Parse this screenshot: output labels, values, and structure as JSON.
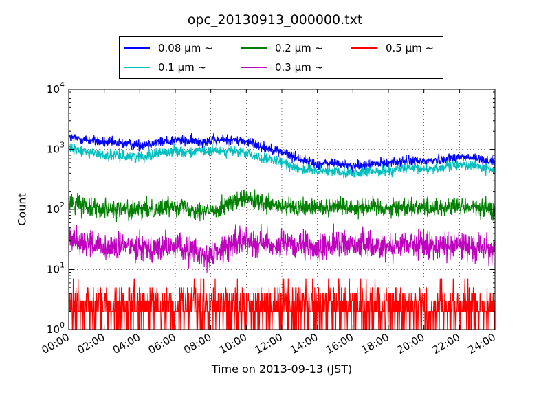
{
  "chart_data": {
    "type": "line",
    "title": "opc_20130913_000000.txt",
    "xlabel": "Time on 2013-09-13 (JST)",
    "ylabel": "Count",
    "yscale": "log",
    "ylim": [
      1,
      10000
    ],
    "xlim": [
      "00:00",
      "24:00"
    ],
    "x_ticks": [
      "00:00",
      "02:00",
      "04:00",
      "06:00",
      "08:00",
      "10:00",
      "12:00",
      "14:00",
      "16:00",
      "18:00",
      "20:00",
      "22:00",
      "24:00"
    ],
    "y_ticks": [
      {
        "value": 1,
        "base": "10",
        "exp": "0"
      },
      {
        "value": 10,
        "base": "10",
        "exp": "1"
      },
      {
        "value": 100,
        "base": "10",
        "exp": "2"
      },
      {
        "value": 1000,
        "base": "10",
        "exp": "3"
      },
      {
        "value": 10000,
        "base": "10",
        "exp": "4"
      }
    ],
    "grid": true,
    "legend_position": "top",
    "x_hours": [
      0,
      1,
      2,
      3,
      4,
      5,
      6,
      7,
      8,
      9,
      10,
      11,
      12,
      13,
      14,
      15,
      16,
      17,
      18,
      19,
      20,
      21,
      22,
      23,
      24
    ],
    "series": [
      {
        "name": "0.08 μm ~",
        "color": "#0000ff",
        "values": [
          1550,
          1450,
          1300,
          1250,
          1200,
          1300,
          1450,
          1350,
          1400,
          1450,
          1350,
          1100,
          900,
          700,
          550,
          600,
          520,
          560,
          600,
          640,
          630,
          680,
          750,
          700,
          620
        ]
      },
      {
        "name": "0.1 μm ~",
        "color": "#00bfbf",
        "values": [
          1000,
          920,
          800,
          780,
          750,
          850,
          950,
          900,
          920,
          950,
          850,
          700,
          600,
          480,
          420,
          440,
          400,
          420,
          450,
          480,
          470,
          500,
          560,
          520,
          450
        ]
      },
      {
        "name": "0.2 μm ~",
        "color": "#008000",
        "values": [
          130,
          115,
          105,
          100,
          95,
          105,
          120,
          100,
          90,
          130,
          150,
          120,
          110,
          105,
          108,
          115,
          110,
          112,
          105,
          110,
          110,
          108,
          112,
          105,
          95
        ]
      },
      {
        "name": "0.3 μm ~",
        "color": "#bf00bf",
        "values": [
          35,
          28,
          22,
          24,
          26,
          22,
          25,
          20,
          17,
          25,
          32,
          28,
          25,
          24,
          22,
          28,
          27,
          25,
          24,
          28,
          25,
          24,
          26,
          23,
          22
        ]
      },
      {
        "name": "0.5 μm ~",
        "color": "#ff0000",
        "values": [
          2,
          2,
          2,
          2,
          2,
          2,
          2,
          2,
          2,
          2,
          2,
          2,
          2,
          2,
          2,
          2,
          2,
          2,
          2,
          2,
          2,
          2,
          2,
          2,
          2
        ]
      }
    ]
  }
}
